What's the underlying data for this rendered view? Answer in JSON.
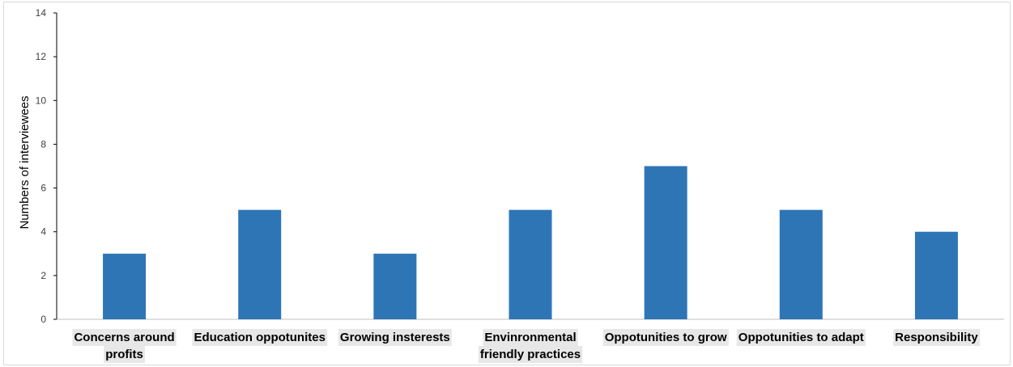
{
  "chart_data": {
    "type": "bar",
    "title": "",
    "xlabel": "",
    "ylabel": "Numbers of interviewees",
    "categories": [
      [
        "Concerns around",
        "profits"
      ],
      [
        "Education oppotunites"
      ],
      [
        "Growing insterests"
      ],
      [
        "Envinronmental",
        "friendly practices"
      ],
      [
        "Oppotunities to grow"
      ],
      [
        "Oppotunities to adapt"
      ],
      [
        "Responsibility"
      ]
    ],
    "values": [
      3,
      5,
      3,
      5,
      7,
      5,
      4
    ],
    "ylim": [
      0,
      14
    ],
    "yticks": [
      0,
      2,
      4,
      6,
      8,
      10,
      12,
      14
    ],
    "grid": false,
    "legend": "none",
    "bar_color": "#2e75b6"
  }
}
